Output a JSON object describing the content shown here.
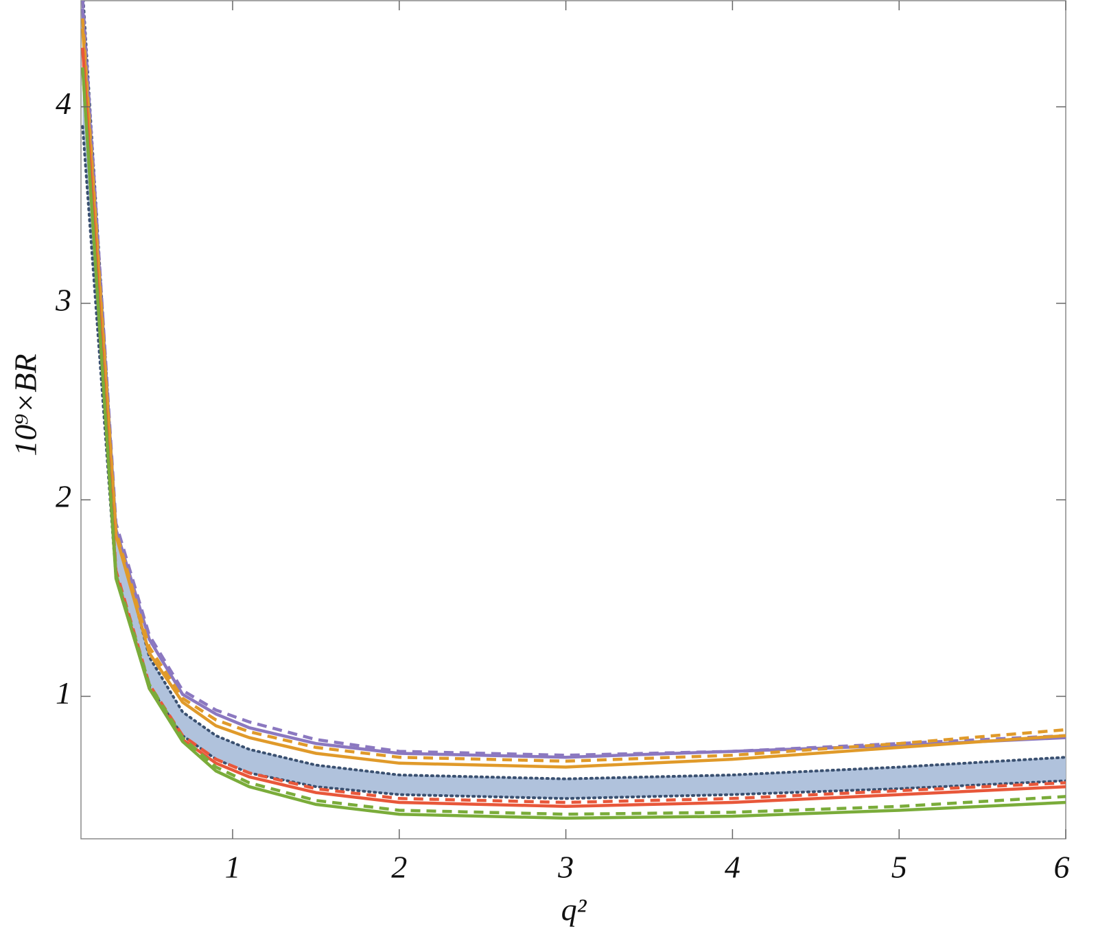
{
  "chart_data": {
    "type": "line",
    "xlabel": "q²",
    "ylabel": "10⁹×BR",
    "x": [
      0.1,
      0.3,
      0.5,
      0.7,
      0.9,
      1.1,
      1.5,
      2,
      3,
      4,
      5,
      6
    ],
    "xlim": [
      0.09,
      6
    ],
    "xticks": [
      1,
      2,
      3,
      4,
      5,
      6
    ],
    "ylim": [
      0.275,
      4.54
    ],
    "yticks": [
      1,
      2,
      3,
      4
    ],
    "band": {
      "color": "#b0c2dc",
      "edge_color": "#3a5070",
      "upper": [
        4.6,
        1.85,
        1.2,
        0.92,
        0.8,
        0.73,
        0.65,
        0.6,
        0.58,
        0.6,
        0.64,
        0.69
      ],
      "lower": [
        3.9,
        1.6,
        1.05,
        0.8,
        0.68,
        0.61,
        0.54,
        0.5,
        0.48,
        0.5,
        0.53,
        0.57
      ]
    },
    "series": [
      {
        "color": "#8b78c0",
        "dash": "solid",
        "values": [
          4.5,
          1.85,
          1.29,
          1.01,
          0.91,
          0.84,
          0.76,
          0.71,
          0.69,
          0.72,
          0.75,
          0.79
        ]
      },
      {
        "color": "#8b78c0",
        "dash": "dashed",
        "values": [
          4.55,
          1.88,
          1.31,
          1.03,
          0.93,
          0.87,
          0.78,
          0.72,
          0.7,
          0.72,
          0.76,
          0.8
        ]
      },
      {
        "color": "#e09a2a",
        "dash": "solid",
        "values": [
          4.4,
          1.82,
          1.22,
          0.97,
          0.85,
          0.79,
          0.71,
          0.66,
          0.64,
          0.68,
          0.74,
          0.8
        ]
      },
      {
        "color": "#e09a2a",
        "dash": "dashed",
        "values": [
          4.45,
          1.84,
          1.25,
          0.99,
          0.88,
          0.82,
          0.74,
          0.69,
          0.67,
          0.7,
          0.76,
          0.83
        ]
      },
      {
        "color": "#e8573a",
        "dash": "solid",
        "values": [
          4.3,
          1.62,
          1.04,
          0.78,
          0.66,
          0.59,
          0.51,
          0.46,
          0.44,
          0.46,
          0.5,
          0.54
        ]
      },
      {
        "color": "#e8573a",
        "dash": "dashed",
        "values": [
          4.3,
          1.64,
          1.06,
          0.8,
          0.68,
          0.61,
          0.53,
          0.48,
          0.46,
          0.48,
          0.52,
          0.56
        ]
      },
      {
        "color": "#7aac3a",
        "dash": "solid",
        "values": [
          4.2,
          1.6,
          1.04,
          0.77,
          0.62,
          0.54,
          0.45,
          0.4,
          0.38,
          0.39,
          0.42,
          0.46
        ]
      },
      {
        "color": "#7aac3a",
        "dash": "dashed",
        "values": [
          4.2,
          1.62,
          1.06,
          0.79,
          0.64,
          0.56,
          0.47,
          0.42,
          0.4,
          0.41,
          0.44,
          0.49
        ]
      }
    ]
  }
}
